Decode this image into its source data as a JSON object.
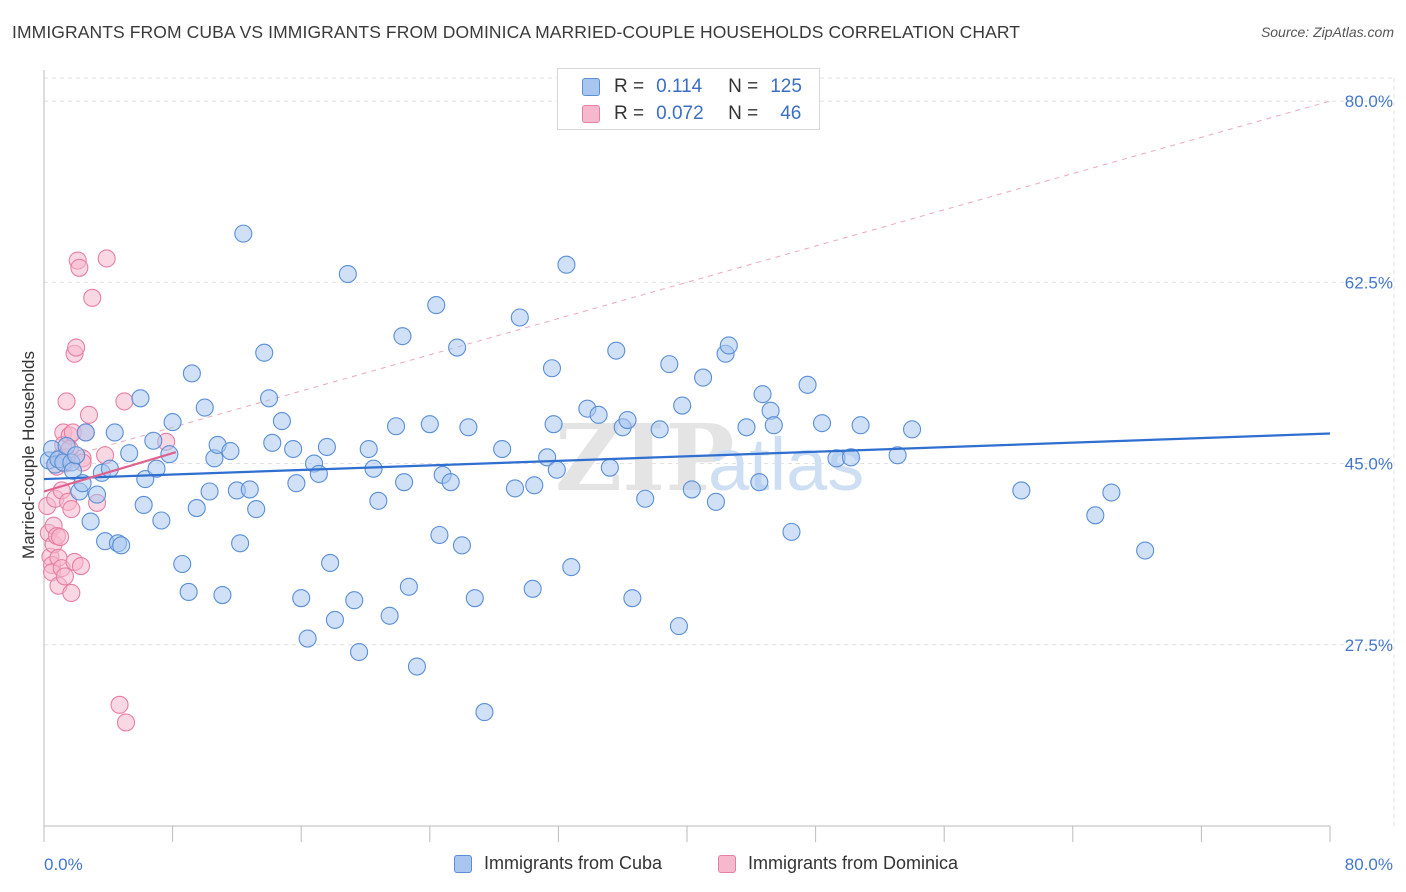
{
  "title": "IMMIGRANTS FROM CUBA VS IMMIGRANTS FROM DOMINICA MARRIED-COUPLE HOUSEHOLDS CORRELATION CHART",
  "source": "Source: ZipAtlas.com",
  "watermark": {
    "zip": "ZIP",
    "atlas": "atlas"
  },
  "colors": {
    "cuba_fill": "#a8c6f0",
    "cuba_stroke": "#5a8fd6",
    "cuba_line": "#2f6fcf",
    "dominica_fill": "#f6b8cc",
    "dominica_stroke": "#e87fa2",
    "dominica_line": "#e0608e",
    "axis_label": "#4477cc",
    "grid": "#e2e2e2"
  },
  "stats": [
    {
      "r_label": "R =",
      "r_value": "0.114",
      "n_label": "N =",
      "n_value": "125"
    },
    {
      "r_label": "R =",
      "r_value": "0.072",
      "n_label": "N =",
      "n_value": "46"
    }
  ],
  "chart_data": {
    "type": "scatter",
    "title": "IMMIGRANTS FROM CUBA VS IMMIGRANTS FROM DOMINICA MARRIED-COUPLE HOUSEHOLDS CORRELATION CHART",
    "xlabel": "",
    "ylabel": "Married-couple Households",
    "xlim": [
      0,
      80
    ],
    "ylim": [
      10,
      83
    ],
    "x_tick_labels": [
      "0.0%",
      "80.0%"
    ],
    "y_ticks": [
      27.5,
      45.0,
      62.5,
      80.0
    ],
    "y_tick_labels": [
      "27.5%",
      "45.0%",
      "62.5%",
      "80.0%"
    ],
    "grid": true,
    "legend_position": "bottom",
    "series": [
      {
        "name": "Immigrants from Cuba",
        "trend": [
          [
            0,
            43.5
          ],
          [
            80,
            47.9
          ]
        ],
        "points": [
          [
            0.3,
            45.3
          ],
          [
            0.5,
            46.4
          ],
          [
            0.7,
            44.9
          ],
          [
            0.9,
            45.4
          ],
          [
            1.2,
            45.1
          ],
          [
            1.4,
            46.7
          ],
          [
            1.7,
            45.1
          ],
          [
            1.8,
            44.3
          ],
          [
            2.0,
            45.8
          ],
          [
            2.2,
            42.3
          ],
          [
            2.4,
            43.1
          ],
          [
            2.6,
            48.0
          ],
          [
            2.9,
            39.4
          ],
          [
            3.3,
            42.0
          ],
          [
            3.6,
            44.1
          ],
          [
            3.8,
            37.5
          ],
          [
            4.1,
            44.5
          ],
          [
            4.4,
            48.0
          ],
          [
            4.6,
            37.3
          ],
          [
            4.8,
            37.1
          ],
          [
            5.3,
            46.0
          ],
          [
            6.0,
            51.3
          ],
          [
            6.2,
            41.0
          ],
          [
            6.3,
            43.5
          ],
          [
            6.8,
            47.2
          ],
          [
            7.0,
            44.5
          ],
          [
            7.3,
            39.5
          ],
          [
            7.8,
            45.9
          ],
          [
            8.0,
            49.0
          ],
          [
            8.6,
            35.3
          ],
          [
            9.0,
            32.6
          ],
          [
            9.2,
            53.7
          ],
          [
            9.5,
            40.7
          ],
          [
            10.0,
            50.4
          ],
          [
            10.3,
            42.3
          ],
          [
            10.6,
            45.5
          ],
          [
            10.8,
            46.8
          ],
          [
            11.1,
            32.3
          ],
          [
            11.6,
            46.2
          ],
          [
            12.0,
            42.4
          ],
          [
            12.2,
            37.3
          ],
          [
            12.4,
            67.2
          ],
          [
            12.8,
            42.5
          ],
          [
            13.2,
            40.6
          ],
          [
            13.7,
            55.7
          ],
          [
            14.0,
            51.3
          ],
          [
            14.2,
            47.0
          ],
          [
            14.8,
            49.1
          ],
          [
            15.5,
            46.4
          ],
          [
            15.7,
            43.1
          ],
          [
            16.0,
            32.0
          ],
          [
            16.4,
            28.1
          ],
          [
            16.8,
            45.0
          ],
          [
            17.1,
            44.0
          ],
          [
            17.6,
            46.6
          ],
          [
            17.8,
            35.4
          ],
          [
            18.1,
            29.9
          ],
          [
            18.9,
            63.3
          ],
          [
            19.3,
            31.8
          ],
          [
            19.6,
            26.8
          ],
          [
            20.2,
            46.4
          ],
          [
            20.5,
            44.5
          ],
          [
            20.8,
            41.4
          ],
          [
            21.5,
            30.3
          ],
          [
            21.9,
            48.6
          ],
          [
            22.3,
            57.3
          ],
          [
            22.4,
            43.2
          ],
          [
            22.7,
            33.1
          ],
          [
            23.2,
            25.4
          ],
          [
            24.0,
            48.8
          ],
          [
            24.4,
            60.3
          ],
          [
            24.6,
            38.1
          ],
          [
            24.8,
            43.9
          ],
          [
            25.3,
            43.2
          ],
          [
            25.7,
            56.2
          ],
          [
            26.0,
            37.1
          ],
          [
            26.4,
            48.5
          ],
          [
            26.8,
            32.0
          ],
          [
            27.4,
            21.0
          ],
          [
            28.5,
            46.4
          ],
          [
            29.3,
            42.6
          ],
          [
            29.6,
            59.1
          ],
          [
            30.4,
            32.9
          ],
          [
            30.5,
            42.9
          ],
          [
            31.3,
            45.6
          ],
          [
            31.6,
            54.2
          ],
          [
            31.7,
            48.8
          ],
          [
            31.9,
            44.4
          ],
          [
            32.5,
            64.2
          ],
          [
            32.8,
            35.0
          ],
          [
            33.8,
            50.3
          ],
          [
            34.5,
            49.7
          ],
          [
            35.2,
            44.6
          ],
          [
            35.6,
            55.9
          ],
          [
            36.0,
            48.5
          ],
          [
            36.3,
            49.2
          ],
          [
            36.6,
            32.0
          ],
          [
            37.4,
            41.6
          ],
          [
            38.3,
            48.3
          ],
          [
            38.9,
            54.6
          ],
          [
            39.5,
            29.3
          ],
          [
            39.7,
            50.6
          ],
          [
            40.3,
            42.5
          ],
          [
            41.0,
            53.3
          ],
          [
            41.8,
            41.3
          ],
          [
            42.4,
            55.6
          ],
          [
            42.6,
            56.4
          ],
          [
            43.7,
            48.5
          ],
          [
            44.5,
            43.2
          ],
          [
            44.7,
            51.7
          ],
          [
            45.2,
            50.1
          ],
          [
            45.4,
            48.7
          ],
          [
            46.5,
            38.4
          ],
          [
            47.5,
            52.6
          ],
          [
            48.4,
            48.9
          ],
          [
            49.3,
            45.5
          ],
          [
            50.2,
            45.6
          ],
          [
            50.8,
            48.7
          ],
          [
            53.1,
            45.8
          ],
          [
            54.0,
            48.3
          ],
          [
            60.8,
            42.4
          ],
          [
            65.4,
            40.0
          ],
          [
            66.4,
            42.2
          ],
          [
            68.5,
            36.6
          ]
        ]
      },
      {
        "name": "Immigrants from Dominica",
        "trend": [
          [
            0,
            42.3
          ],
          [
            8.2,
            46.1
          ]
        ],
        "points": [
          [
            0.2,
            40.9
          ],
          [
            0.3,
            38.3
          ],
          [
            0.4,
            36.0
          ],
          [
            0.5,
            35.2
          ],
          [
            0.5,
            34.5
          ],
          [
            0.6,
            37.2
          ],
          [
            0.6,
            39.0
          ],
          [
            0.7,
            41.6
          ],
          [
            0.8,
            44.7
          ],
          [
            0.8,
            38.0
          ],
          [
            0.9,
            35.9
          ],
          [
            0.9,
            33.2
          ],
          [
            1.0,
            45.6
          ],
          [
            1.0,
            37.9
          ],
          [
            1.1,
            42.4
          ],
          [
            1.1,
            34.9
          ],
          [
            1.2,
            48.0
          ],
          [
            1.2,
            46.8
          ],
          [
            1.3,
            45.0
          ],
          [
            1.3,
            34.1
          ],
          [
            1.4,
            51.0
          ],
          [
            1.4,
            45.6
          ],
          [
            1.5,
            41.3
          ],
          [
            1.6,
            47.7
          ],
          [
            1.6,
            46.4
          ],
          [
            1.7,
            40.6
          ],
          [
            1.7,
            32.5
          ],
          [
            1.8,
            48.0
          ],
          [
            1.9,
            35.5
          ],
          [
            1.9,
            55.6
          ],
          [
            2.0,
            56.2
          ],
          [
            2.1,
            64.6
          ],
          [
            2.2,
            63.9
          ],
          [
            2.3,
            35.1
          ],
          [
            2.4,
            45.5
          ],
          [
            2.4,
            45.1
          ],
          [
            2.6,
            48.0
          ],
          [
            2.8,
            49.7
          ],
          [
            3.0,
            61.0
          ],
          [
            3.3,
            41.2
          ],
          [
            3.8,
            45.8
          ],
          [
            3.9,
            64.8
          ],
          [
            4.7,
            21.7
          ],
          [
            5.0,
            51.0
          ],
          [
            5.1,
            20.0
          ],
          [
            7.6,
            47.1
          ]
        ]
      }
    ],
    "reference_line": {
      "style": "dashed",
      "from": [
        0,
        45.0
      ],
      "to": [
        80,
        80.0
      ]
    }
  },
  "legend": [
    {
      "label": "Immigrants from Cuba"
    },
    {
      "label": "Immigrants from Dominica"
    }
  ]
}
